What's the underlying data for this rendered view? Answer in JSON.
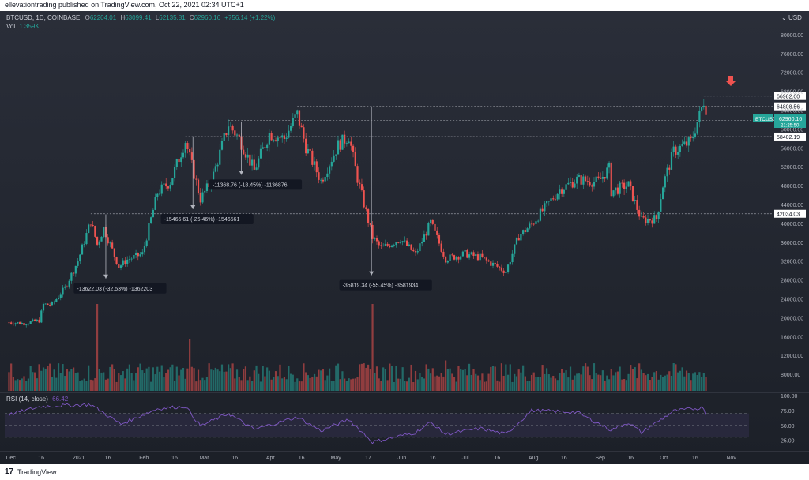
{
  "publisher": "ellevationtrading published on TradingView.com, Oct 22, 2021 02:34 UTC+1",
  "symbol_line": {
    "symbol": "BTCUSD, 1D, COINBASE",
    "o_label": "O",
    "o": "62204.01",
    "h_label": "H",
    "h": "63099.41",
    "l_label": "L",
    "l": "62135.81",
    "c_label": "C",
    "c": "62960.16",
    "change": "+756.14 (+1.22%)"
  },
  "vol_line": {
    "label": "Vol",
    "value": "1.359K"
  },
  "currency": "USD",
  "rsi_label": "RSI (14, close)",
  "rsi_value": "66.42",
  "footer": {
    "logo": "17",
    "brand": "TradingView"
  },
  "colors": {
    "background": "#1c2028",
    "up": "#26a69a",
    "down": "#ef5350",
    "rsi_line": "#7e57c2",
    "rsi_band": "#7e57c2",
    "text": "#b2b5be",
    "arrow": "#ef5350"
  },
  "price_axis": {
    "ticks": [
      8000,
      12000,
      16000,
      20000,
      24000,
      28000,
      32000,
      36000,
      40000,
      44000,
      48000,
      52000,
      56000,
      60000,
      64000,
      68000,
      72000,
      76000,
      80000
    ],
    "tick_labels": [
      "8000.00",
      "12000.00",
      "16000.00",
      "20000.00",
      "24000.00",
      "28000.00",
      "32000.00",
      "36000.00",
      "40000.00",
      "44000.00",
      "48000.00",
      "52000.00",
      "56000.00",
      "60000.00",
      "64000.00",
      "68000.00",
      "72000.00",
      "76000.00",
      "80000.00"
    ],
    "range": [
      6000,
      82000
    ],
    "current_price_label": "BTCUSD",
    "current_price": "62960.16",
    "countdown": "21:25:50"
  },
  "level_labels": [
    {
      "value": 66982.0,
      "label": "66982.00"
    },
    {
      "value": 64808.56,
      "label": "64808.56"
    },
    {
      "value": 61793.6,
      "label": "61793.60"
    },
    {
      "value": 58402.19,
      "label": "58402.19"
    },
    {
      "value": 42034.03,
      "label": "42034.03"
    }
  ],
  "rsi_axis": {
    "ticks": [
      25,
      50,
      75,
      100
    ],
    "tick_labels": [
      "25.00",
      "50.00",
      "75.00",
      "100.00"
    ],
    "band": [
      30,
      70
    ]
  },
  "x_axis": {
    "labels": [
      {
        "date": "2020-12-01",
        "text": "Dec"
      },
      {
        "date": "2020-12-16",
        "text": "16"
      },
      {
        "date": "2021-01-01",
        "text": "2021"
      },
      {
        "date": "2021-01-16",
        "text": "16"
      },
      {
        "date": "2021-02-01",
        "text": "Feb"
      },
      {
        "date": "2021-02-16",
        "text": "16"
      },
      {
        "date": "2021-03-01",
        "text": "Mar"
      },
      {
        "date": "2021-03-16",
        "text": "16"
      },
      {
        "date": "2021-04-01",
        "text": "Apr"
      },
      {
        "date": "2021-04-16",
        "text": "16"
      },
      {
        "date": "2021-05-01",
        "text": "May"
      },
      {
        "date": "2021-05-17",
        "text": "17"
      },
      {
        "date": "2021-06-01",
        "text": "Jun"
      },
      {
        "date": "2021-06-16",
        "text": "16"
      },
      {
        "date": "2021-07-01",
        "text": "Jul"
      },
      {
        "date": "2021-07-16",
        "text": "16"
      },
      {
        "date": "2021-08-01",
        "text": "Aug"
      },
      {
        "date": "2021-08-16",
        "text": "16"
      },
      {
        "date": "2021-09-01",
        "text": "Sep"
      },
      {
        "date": "2021-09-16",
        "text": "16"
      },
      {
        "date": "2021-10-01",
        "text": "Oct"
      },
      {
        "date": "2021-10-16",
        "text": "16"
      },
      {
        "date": "2021-11-01",
        "text": "Nov"
      }
    ],
    "range": [
      "2020-11-29",
      "2021-11-10"
    ]
  },
  "measurements": [
    {
      "text": "-13622.03 (-32.53%) -1362203",
      "from_date": "2021-01-08",
      "from_price": 41900,
      "to_date": "2021-01-22",
      "to_price": 28300
    },
    {
      "text": "-15465.61 (-26.46%) -1546561",
      "from_date": "2021-02-21",
      "from_price": 58300,
      "to_date": "2021-02-28",
      "to_price": 43000
    },
    {
      "text": "-11368.76 (-18.45%) -1136876",
      "from_date": "2021-03-13",
      "from_price": 61600,
      "to_date": "2021-03-25",
      "to_price": 50300
    },
    {
      "text": "-35819.34 (-55.45%) -3581934",
      "from_date": "2021-04-14",
      "from_price": 64800,
      "to_date": "2021-06-22",
      "to_price": 29000
    }
  ],
  "levels": [
    {
      "value": 66982,
      "from_date": "2021-10-20"
    },
    {
      "value": 64808.56,
      "from_date": "2021-04-14"
    },
    {
      "value": 61793.6,
      "from_date": "2021-03-13"
    },
    {
      "value": 58402.19,
      "from_date": "2021-02-21"
    },
    {
      "value": 42034.03,
      "from_date": "2021-01-08"
    }
  ],
  "chart_data": {
    "type": "candlestick",
    "symbol": "BTCUSD",
    "exchange": "COINBASE",
    "timeframe": "1D",
    "x_type": "date",
    "ylim": [
      6000,
      82000
    ],
    "price_series": [
      {
        "date": "2020-12-01",
        "close": 19000
      },
      {
        "date": "2020-12-08",
        "close": 18800
      },
      {
        "date": "2020-12-15",
        "close": 19400
      },
      {
        "date": "2020-12-17",
        "close": 22800
      },
      {
        "date": "2020-12-21",
        "close": 22800
      },
      {
        "date": "2020-12-27",
        "close": 26300
      },
      {
        "date": "2021-01-02",
        "close": 32000
      },
      {
        "date": "2021-01-08",
        "close": 40500
      },
      {
        "date": "2021-01-11",
        "close": 35500
      },
      {
        "date": "2021-01-14",
        "close": 39000
      },
      {
        "date": "2021-01-21",
        "close": 30800
      },
      {
        "date": "2021-01-25",
        "close": 32300
      },
      {
        "date": "2021-02-01",
        "close": 33500
      },
      {
        "date": "2021-02-08",
        "close": 46500
      },
      {
        "date": "2021-02-14",
        "close": 48800
      },
      {
        "date": "2021-02-21",
        "close": 57500
      },
      {
        "date": "2021-02-28",
        "close": 45200
      },
      {
        "date": "2021-03-05",
        "close": 48800
      },
      {
        "date": "2021-03-13",
        "close": 61000
      },
      {
        "date": "2021-03-18",
        "close": 58000
      },
      {
        "date": "2021-03-25",
        "close": 51200
      },
      {
        "date": "2021-04-01",
        "close": 59000
      },
      {
        "date": "2021-04-08",
        "close": 58000
      },
      {
        "date": "2021-04-14",
        "close": 63200
      },
      {
        "date": "2021-04-18",
        "close": 56200
      },
      {
        "date": "2021-04-25",
        "close": 49000
      },
      {
        "date": "2021-05-03",
        "close": 56600
      },
      {
        "date": "2021-05-08",
        "close": 58500
      },
      {
        "date": "2021-05-12",
        "close": 49500
      },
      {
        "date": "2021-05-19",
        "close": 37000
      },
      {
        "date": "2021-05-23",
        "close": 34700
      },
      {
        "date": "2021-06-01",
        "close": 36700
      },
      {
        "date": "2021-06-08",
        "close": 33400
      },
      {
        "date": "2021-06-15",
        "close": 40100
      },
      {
        "date": "2021-06-22",
        "close": 32500
      },
      {
        "date": "2021-07-01",
        "close": 33500
      },
      {
        "date": "2021-07-08",
        "close": 32800
      },
      {
        "date": "2021-07-20",
        "close": 29800
      },
      {
        "date": "2021-07-26",
        "close": 37300
      },
      {
        "date": "2021-08-01",
        "close": 39800
      },
      {
        "date": "2021-08-08",
        "close": 43800
      },
      {
        "date": "2021-08-14",
        "close": 47100
      },
      {
        "date": "2021-08-22",
        "close": 49300
      },
      {
        "date": "2021-09-01",
        "close": 48800
      },
      {
        "date": "2021-09-06",
        "close": 51700
      },
      {
        "date": "2021-09-07",
        "close": 46800
      },
      {
        "date": "2021-09-15",
        "close": 48100
      },
      {
        "date": "2021-09-21",
        "close": 40700
      },
      {
        "date": "2021-09-28",
        "close": 41000
      },
      {
        "date": "2021-10-01",
        "close": 48100
      },
      {
        "date": "2021-10-06",
        "close": 55300
      },
      {
        "date": "2021-10-14",
        "close": 57300
      },
      {
        "date": "2021-10-19",
        "close": 64300
      },
      {
        "date": "2021-10-20",
        "close": 66000
      },
      {
        "date": "2021-10-21",
        "close": 62960
      }
    ],
    "volume_spikes": [
      {
        "date": "2021-01-11",
        "volume_rel": 1.0
      },
      {
        "date": "2021-02-23",
        "volume_rel": 0.6
      },
      {
        "date": "2021-05-19",
        "volume_rel": 1.0
      },
      {
        "date": "2021-06-22",
        "volume_rel": 0.35
      }
    ],
    "rsi_series": [
      {
        "date": "2020-12-01",
        "value": 68
      },
      {
        "date": "2020-12-16",
        "value": 82
      },
      {
        "date": "2021-01-08",
        "value": 85
      },
      {
        "date": "2021-01-22",
        "value": 52
      },
      {
        "date": "2021-02-08",
        "value": 78
      },
      {
        "date": "2021-02-21",
        "value": 82
      },
      {
        "date": "2021-02-28",
        "value": 49
      },
      {
        "date": "2021-03-13",
        "value": 70
      },
      {
        "date": "2021-03-25",
        "value": 43
      },
      {
        "date": "2021-04-14",
        "value": 64
      },
      {
        "date": "2021-04-25",
        "value": 41
      },
      {
        "date": "2021-05-08",
        "value": 60
      },
      {
        "date": "2021-05-19",
        "value": 22
      },
      {
        "date": "2021-06-08",
        "value": 38
      },
      {
        "date": "2021-06-15",
        "value": 55
      },
      {
        "date": "2021-06-22",
        "value": 35
      },
      {
        "date": "2021-07-08",
        "value": 45
      },
      {
        "date": "2021-07-20",
        "value": 35
      },
      {
        "date": "2021-08-01",
        "value": 75
      },
      {
        "date": "2021-08-22",
        "value": 72
      },
      {
        "date": "2021-09-07",
        "value": 42
      },
      {
        "date": "2021-09-15",
        "value": 55
      },
      {
        "date": "2021-09-21",
        "value": 38
      },
      {
        "date": "2021-10-06",
        "value": 74
      },
      {
        "date": "2021-10-20",
        "value": 80
      },
      {
        "date": "2021-10-21",
        "value": 66.42
      }
    ]
  }
}
